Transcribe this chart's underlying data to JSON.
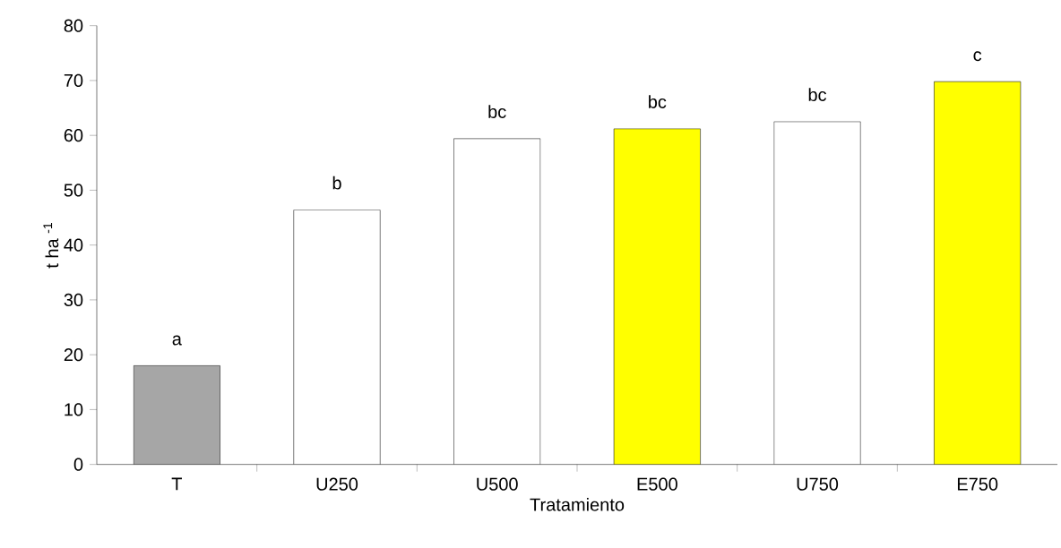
{
  "chart_data": {
    "type": "bar",
    "xlabel": "Tratamiento",
    "ylabel": "t ha $^{-1}$",
    "categories": [
      "T",
      "U250",
      "U500",
      "E500",
      "U750",
      "E750"
    ],
    "values": [
      18,
      46.4,
      59.4,
      61.2,
      62.5,
      69.8
    ],
    "value_labels": [
      "a",
      "b",
      "bc",
      "bc",
      "bc",
      "c"
    ],
    "colors": [
      "#a6a6a6",
      "#ffffff",
      "#ffffff",
      "#ffff00",
      "#ffffff",
      "#ffff00"
    ],
    "ylim": [
      0,
      80
    ],
    "yticks": [
      0,
      10,
      20,
      30,
      40,
      50,
      60,
      70,
      80
    ],
    "grid": false
  }
}
